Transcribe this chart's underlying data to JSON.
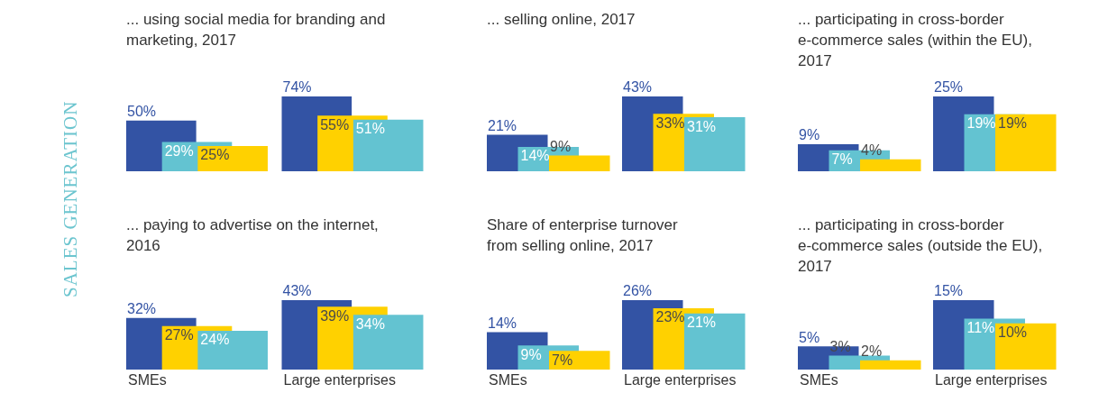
{
  "chart_data": [
    {
      "type": "bar",
      "title": "... using social media for branding and marketing, 2017",
      "annotations": [
        "SALES GENERATION"
      ],
      "categories": [
        null,
        null
      ],
      "grid": false,
      "legend": false,
      "series": [
        {
          "colors": [
            "#3353a4",
            "#3353a4"
          ],
          "values": [
            50,
            74
          ],
          "value_labels": [
            "50%",
            "74%"
          ]
        },
        {
          "colors": [
            "#63c3d1",
            "#ffd100"
          ],
          "values": [
            29,
            55
          ],
          "value_labels": [
            "29%",
            "55%"
          ]
        },
        {
          "colors": [
            "#ffd100",
            "#63c3d1"
          ],
          "values": [
            25,
            51
          ],
          "value_labels": [
            "25%",
            "51%"
          ]
        }
      ]
    },
    {
      "type": "bar",
      "title": "... selling online, 2017",
      "categories": [
        null,
        null
      ],
      "grid": false,
      "legend": false,
      "series": [
        {
          "colors": [
            "#3353a4",
            "#3353a4"
          ],
          "values": [
            21,
            43
          ],
          "value_labels": [
            "21%",
            "43%"
          ]
        },
        {
          "colors": [
            "#63c3d1",
            "#ffd100"
          ],
          "values": [
            14,
            33
          ],
          "value_labels": [
            "14%",
            "33%"
          ]
        },
        {
          "colors": [
            "#ffd100",
            "#63c3d1"
          ],
          "values": [
            9,
            31
          ],
          "value_labels": [
            "9%",
            "31%"
          ]
        }
      ]
    },
    {
      "type": "bar",
      "title": "... participating in cross-border e-commerce sales (within the EU), 2017",
      "categories": [
        null,
        null
      ],
      "grid": false,
      "legend": false,
      "series": [
        {
          "colors": [
            "#3353a4",
            "#3353a4"
          ],
          "values": [
            9,
            25
          ],
          "value_labels": [
            "9%",
            "25%"
          ]
        },
        {
          "colors": [
            "#63c3d1",
            "#63c3d1"
          ],
          "values": [
            7,
            19
          ],
          "value_labels": [
            "7%",
            "19%"
          ]
        },
        {
          "colors": [
            "#ffd100",
            "#ffd100"
          ],
          "values": [
            4,
            19
          ],
          "value_labels": [
            "4%",
            "19%"
          ]
        }
      ]
    },
    {
      "type": "bar",
      "title": "... paying to advertise on the internet, 2016",
      "categories": [
        "SMEs",
        "Large enterprises"
      ],
      "grid": false,
      "legend": false,
      "tick_labels": "x",
      "series": [
        {
          "colors": [
            "#3353a4",
            "#3353a4"
          ],
          "values": [
            32,
            43
          ],
          "value_labels": [
            "32%",
            "43%"
          ]
        },
        {
          "colors": [
            "#ffd100",
            "#ffd100"
          ],
          "values": [
            27,
            39
          ],
          "value_labels": [
            "27%",
            "39%"
          ]
        },
        {
          "colors": [
            "#63c3d1",
            "#63c3d1"
          ],
          "values": [
            24,
            34
          ],
          "value_labels": [
            "24%",
            "34%"
          ]
        }
      ]
    },
    {
      "type": "bar",
      "title": "Share of enterprise turnover from selling online, 2017",
      "categories": [
        "SMEs",
        "Large enterprises"
      ],
      "grid": false,
      "legend": false,
      "tick_labels": "x",
      "series": [
        {
          "colors": [
            "#3353a4",
            "#3353a4"
          ],
          "values": [
            14,
            26
          ],
          "value_labels": [
            "14%",
            "26%"
          ]
        },
        {
          "colors": [
            "#63c3d1",
            "#ffd100"
          ],
          "values": [
            9,
            23
          ],
          "value_labels": [
            "9%",
            "23%"
          ]
        },
        {
          "colors": [
            "#ffd100",
            "#63c3d1"
          ],
          "values": [
            7,
            21
          ],
          "value_labels": [
            "7%",
            "21%"
          ]
        }
      ]
    },
    {
      "type": "bar",
      "title": "... participating in cross-border e-commerce sales (outside the EU), 2017",
      "categories": [
        "SMEs",
        "Large enterprises"
      ],
      "grid": false,
      "legend": false,
      "tick_labels": "x",
      "series": [
        {
          "colors": [
            "#3353a4",
            "#3353a4"
          ],
          "values": [
            5,
            15
          ],
          "value_labels": [
            "5%",
            "15%"
          ]
        },
        {
          "colors": [
            "#63c3d1",
            "#63c3d1"
          ],
          "values": [
            3,
            11
          ],
          "value_labels": [
            "3%",
            "11%"
          ]
        },
        {
          "colors": [
            "#ffd100",
            "#ffd100"
          ],
          "values": [
            2,
            10
          ],
          "value_labels": [
            "2%",
            "10%"
          ]
        }
      ]
    }
  ]
}
